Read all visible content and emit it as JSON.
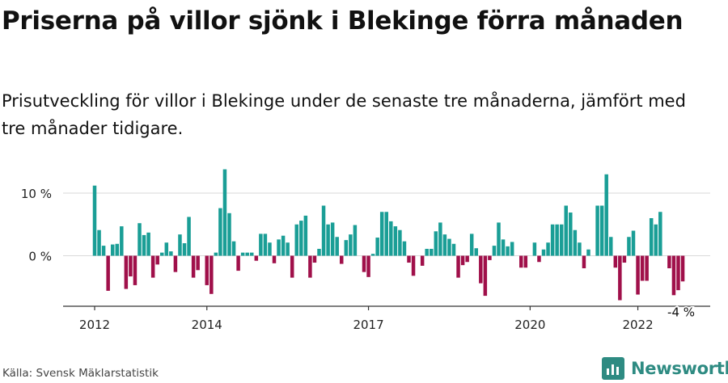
{
  "header": {
    "title": "Priserna på villor sjönk i Blekinge förra månaden",
    "subtitle": "Prisutveckling för villor i Blekinge under de senaste tre månaderna, jämfört med tre månader tidigare."
  },
  "footer": {
    "source": "Källa: Svensk Mäklarstatistik",
    "brand": "Newsworthy"
  },
  "colors": {
    "positive": "#1a9e96",
    "negative": "#a0104a",
    "brand": "#2e8b82"
  },
  "chart_data": {
    "type": "bar",
    "x_tick_labels": [
      "2012",
      "2014",
      "2017",
      "2020",
      "2022"
    ],
    "y_tick_labels": [
      "10 %",
      "0 %"
    ],
    "ylim": [
      -8,
      14
    ],
    "grid": true,
    "annotation": "-4 %",
    "values": [
      11.2,
      4.1,
      1.6,
      -5.6,
      1.8,
      1.9,
      4.7,
      -5.3,
      -3.3,
      -4.7,
      5.2,
      3.3,
      3.7,
      -3.5,
      -1.4,
      0.5,
      2.1,
      0.7,
      -2.6,
      3.4,
      2.0,
      6.2,
      -3.5,
      -2.3,
      0.0,
      -4.7,
      -6.1,
      0.5,
      7.6,
      13.8,
      6.8,
      2.3,
      -2.4,
      0.5,
      0.5,
      0.5,
      -0.8,
      3.5,
      3.5,
      2.1,
      -1.2,
      2.6,
      3.2,
      2.1,
      -3.5,
      5.0,
      5.6,
      6.4,
      -3.5,
      -1.1,
      1.1,
      8.0,
      5.0,
      5.3,
      3.0,
      -1.3,
      2.5,
      3.4,
      4.9,
      0.0,
      -2.6,
      -3.4,
      0.3,
      2.9,
      7.0,
      7.0,
      5.5,
      4.7,
      4.1,
      2.3,
      -1.1,
      -3.2,
      0.0,
      -1.6,
      1.1,
      1.1,
      3.9,
      5.3,
      3.4,
      2.7,
      1.9,
      -3.5,
      -1.5,
      -1.0,
      3.5,
      1.2,
      -4.4,
      -6.4,
      -0.7,
      1.6,
      5.3,
      2.6,
      1.5,
      2.2,
      0.0,
      -1.9,
      -1.9,
      0.0,
      2.1,
      -1.0,
      1.0,
      2.1,
      5.0,
      5.0,
      5.0,
      8.0,
      6.9,
      4.1,
      2.1,
      -2.0,
      1.0,
      0.0,
      8.0,
      8.0,
      13.0,
      3.0,
      -1.9,
      -7.1,
      -1.1,
      3.0,
      4.0,
      -6.2,
      -4.0,
      -4.0,
      6.0,
      5.0,
      7.0,
      0.0,
      -2.0,
      -6.3,
      -5.5,
      -4.1
    ]
  }
}
